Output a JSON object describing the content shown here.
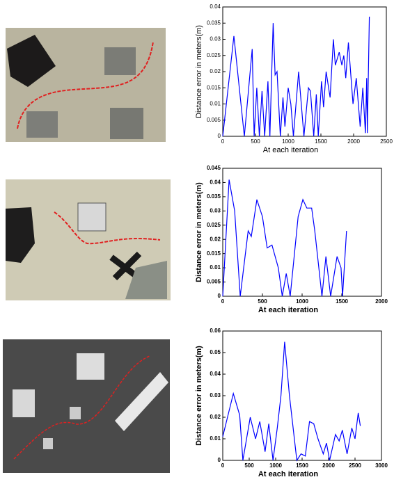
{
  "chart_data": [
    {
      "type": "line",
      "y_label": "Distance error in meters(m)",
      "x_label": "At each iteration",
      "color": "#0000ff",
      "xlim": [
        0,
        2500
      ],
      "xticks": [
        0,
        500,
        1000,
        1500,
        2000,
        2500
      ],
      "ylim": [
        0,
        0.04
      ],
      "yticks": [
        0,
        0.005,
        0.01,
        0.015,
        0.02,
        0.025,
        0.03,
        0.035,
        0.04
      ],
      "x": [
        0,
        170,
        330,
        450,
        480,
        520,
        560,
        600,
        640,
        690,
        720,
        770,
        800,
        830,
        880,
        920,
        950,
        1000,
        1040,
        1080,
        1160,
        1240,
        1310,
        1340,
        1390,
        1430,
        1460,
        1510,
        1540,
        1580,
        1640,
        1690,
        1720,
        1780,
        1820,
        1850,
        1880,
        1920,
        1990,
        2040,
        2100,
        2140,
        2180,
        2200,
        2210,
        2240
      ],
      "values": [
        0,
        0.031,
        0,
        0.027,
        0,
        0.015,
        0,
        0.014,
        0,
        0.017,
        0,
        0.035,
        0.019,
        0.02,
        0,
        0.012,
        0.003,
        0.015,
        0.01,
        0,
        0.02,
        0,
        0.015,
        0.014,
        0,
        0.013,
        0,
        0.017,
        0.009,
        0.02,
        0.012,
        0.03,
        0.022,
        0.026,
        0.022,
        0.025,
        0.018,
        0.029,
        0.01,
        0.018,
        0.003,
        0.015,
        0.001,
        0.018,
        0.001,
        0.037
      ]
    },
    {
      "type": "line",
      "y_label": "Distance error in meters(m)",
      "x_label": "At each iteration",
      "color": "#0000ff",
      "xlim": [
        0,
        2000
      ],
      "xticks": [
        0,
        500,
        1000,
        1500,
        2000
      ],
      "ylim": [
        0,
        0.045
      ],
      "yticks": [
        0,
        0.005,
        0.01,
        0.015,
        0.02,
        0.025,
        0.03,
        0.035,
        0.04,
        0.045
      ],
      "x": [
        0,
        80,
        150,
        220,
        320,
        360,
        430,
        500,
        560,
        620,
        700,
        750,
        800,
        850,
        950,
        1010,
        1060,
        1120,
        1160,
        1250,
        1300,
        1360,
        1440,
        1490,
        1510,
        1560
      ],
      "values": [
        0,
        0.041,
        0.03,
        0,
        0.023,
        0.021,
        0.034,
        0.028,
        0.017,
        0.018,
        0.01,
        0,
        0.008,
        0,
        0.028,
        0.034,
        0.031,
        0.031,
        0.023,
        0,
        0.014,
        0,
        0.014,
        0.01,
        0,
        0.023
      ]
    },
    {
      "type": "line",
      "y_label": "Distance error in meters(m)",
      "x_label": "At each iteration",
      "color": "#0000ff",
      "xlim": [
        0,
        3000
      ],
      "xticks": [
        0,
        500,
        1000,
        1500,
        2000,
        2500,
        3000
      ],
      "ylim": [
        0,
        0.06
      ],
      "yticks": [
        0,
        0.01,
        0.02,
        0.03,
        0.04,
        0.05,
        0.06
      ],
      "x": [
        0,
        200,
        320,
        380,
        520,
        620,
        700,
        800,
        870,
        950,
        1030,
        1100,
        1170,
        1260,
        1400,
        1480,
        1560,
        1640,
        1720,
        1800,
        1900,
        1960,
        2020,
        2130,
        2200,
        2260,
        2350,
        2440,
        2500,
        2560,
        2600
      ],
      "values": [
        0.011,
        0.031,
        0.021,
        0,
        0.02,
        0.01,
        0.018,
        0.004,
        0.017,
        0,
        0.015,
        0.03,
        0.055,
        0.03,
        0,
        0.003,
        0.002,
        0.018,
        0.017,
        0.01,
        0.003,
        0.008,
        0,
        0.012,
        0.009,
        0.014,
        0.003,
        0.015,
        0.01,
        0.022,
        0.016
      ]
    }
  ]
}
